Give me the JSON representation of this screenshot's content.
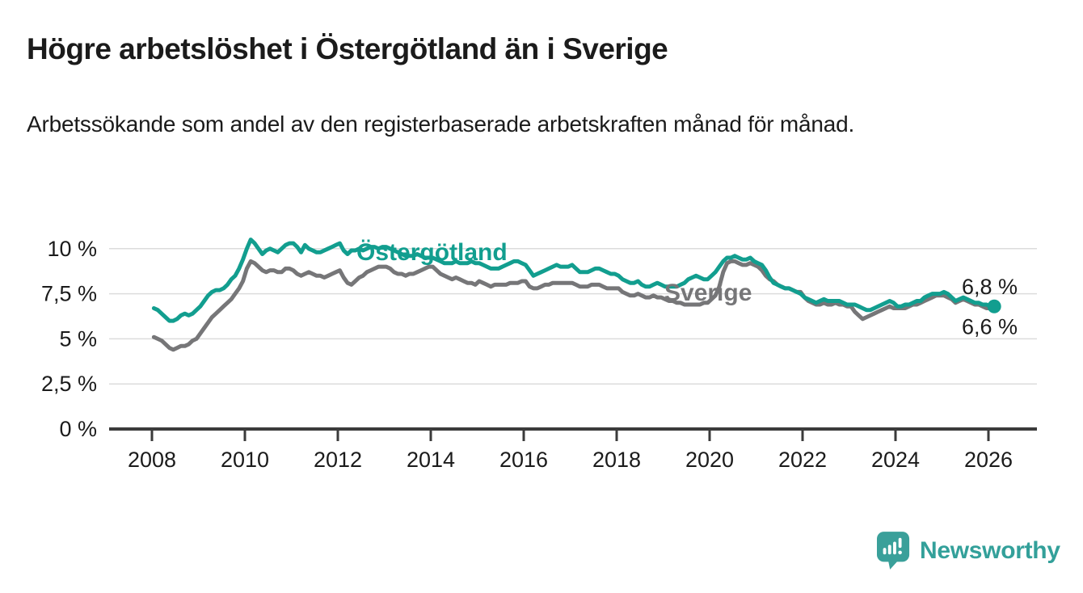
{
  "header": {
    "title": "Högre arbetslöshet i Östergötland än i Sverige",
    "subtitle": "Arbetssökande som andel av den registerbaserade arbetskraften månad för månad."
  },
  "footer": {
    "logo_text": "Newsworthy"
  },
  "colors": {
    "ostergotland": "#129e8f",
    "sverige": "#767678",
    "axis": "#3b3b3b",
    "gridline": "#dcdcdc",
    "text": "#1b1b1b",
    "logo": "#33a09a"
  },
  "chart_data": {
    "type": "line",
    "x_unit": "month",
    "x_start": "2008-01",
    "x_end": "2026-02",
    "x_ticks": [
      2008,
      2010,
      2012,
      2014,
      2016,
      2018,
      2020,
      2022,
      2024,
      2026
    ],
    "y_ticks": [
      {
        "value": 0,
        "label": "0 %"
      },
      {
        "value": 2.5,
        "label": "2,5 %"
      },
      {
        "value": 5,
        "label": "5 %"
      },
      {
        "value": 7.5,
        "label": "7,5 %"
      },
      {
        "value": 10,
        "label": "10 %"
      }
    ],
    "ylim": [
      0,
      11.2
    ],
    "grid": "horizontal",
    "legend_position": "inline-labels",
    "series": [
      {
        "name": "Östergötland",
        "color": "#129e8f",
        "end_label": "6,8 %",
        "latest_value": 6.8,
        "values": [
          6.7,
          6.6,
          6.4,
          6.2,
          6.0,
          6.0,
          6.1,
          6.3,
          6.4,
          6.3,
          6.4,
          6.6,
          6.8,
          7.1,
          7.4,
          7.6,
          7.7,
          7.7,
          7.8,
          8.0,
          8.3,
          8.5,
          8.9,
          9.4,
          10.0,
          10.5,
          10.3,
          10.0,
          9.7,
          9.9,
          10.0,
          9.9,
          9.8,
          10.0,
          10.2,
          10.3,
          10.3,
          10.1,
          9.8,
          10.2,
          10.0,
          9.9,
          9.8,
          9.8,
          9.9,
          10.0,
          10.1,
          10.2,
          10.3,
          9.9,
          9.7,
          9.9,
          9.9,
          10.0,
          9.9,
          10.0,
          10.1,
          10.1,
          10.0,
          10.1,
          10.1,
          10.0,
          9.9,
          9.8,
          9.7,
          9.6,
          9.6,
          9.6,
          9.7,
          9.6,
          9.5,
          9.5,
          9.5,
          9.4,
          9.3,
          9.2,
          9.2,
          9.2,
          9.3,
          9.2,
          9.2,
          9.2,
          9.3,
          9.2,
          9.2,
          9.1,
          9.0,
          8.9,
          8.9,
          8.9,
          9.0,
          9.1,
          9.2,
          9.3,
          9.3,
          9.2,
          9.1,
          8.8,
          8.5,
          8.6,
          8.7,
          8.8,
          8.9,
          9.0,
          9.1,
          9.0,
          9.0,
          9.0,
          9.1,
          8.9,
          8.7,
          8.7,
          8.7,
          8.8,
          8.9,
          8.9,
          8.8,
          8.7,
          8.6,
          8.6,
          8.5,
          8.3,
          8.2,
          8.1,
          8.1,
          8.2,
          8.0,
          7.9,
          7.9,
          8.0,
          8.1,
          8.0,
          7.9,
          7.9,
          7.9,
          7.9,
          8.0,
          8.1,
          8.3,
          8.4,
          8.5,
          8.4,
          8.3,
          8.3,
          8.5,
          8.7,
          9.0,
          9.3,
          9.5,
          9.5,
          9.6,
          9.5,
          9.4,
          9.4,
          9.5,
          9.3,
          9.2,
          9.1,
          8.8,
          8.4,
          8.1,
          8.0,
          7.9,
          7.8,
          7.8,
          7.7,
          7.6,
          7.5,
          7.3,
          7.2,
          7.1,
          7.0,
          7.1,
          7.2,
          7.1,
          7.1,
          7.1,
          7.1,
          7.0,
          6.9,
          6.9,
          6.9,
          6.8,
          6.7,
          6.6,
          6.6,
          6.7,
          6.8,
          6.9,
          7.0,
          7.1,
          7.0,
          6.8,
          6.8,
          6.9,
          6.9,
          7.0,
          7.1,
          7.1,
          7.3,
          7.4,
          7.5,
          7.5,
          7.5,
          7.6,
          7.5,
          7.3,
          7.1,
          7.2,
          7.3,
          7.2,
          7.1,
          7.0,
          7.0,
          6.9,
          6.9,
          6.8,
          6.8
        ]
      },
      {
        "name": "Sverige",
        "color": "#767678",
        "end_label": "6,6 %",
        "latest_value": 6.6,
        "values": [
          5.1,
          5.0,
          4.9,
          4.7,
          4.5,
          4.4,
          4.5,
          4.6,
          4.6,
          4.7,
          4.9,
          5.0,
          5.3,
          5.6,
          5.9,
          6.2,
          6.4,
          6.6,
          6.8,
          7.0,
          7.2,
          7.5,
          7.8,
          8.2,
          8.9,
          9.3,
          9.2,
          9.0,
          8.8,
          8.7,
          8.8,
          8.8,
          8.7,
          8.7,
          8.9,
          8.9,
          8.8,
          8.6,
          8.5,
          8.6,
          8.7,
          8.6,
          8.5,
          8.5,
          8.4,
          8.5,
          8.6,
          8.7,
          8.8,
          8.4,
          8.1,
          8.0,
          8.2,
          8.4,
          8.5,
          8.7,
          8.8,
          8.9,
          9.0,
          9.0,
          9.0,
          8.9,
          8.7,
          8.6,
          8.6,
          8.5,
          8.6,
          8.6,
          8.7,
          8.8,
          8.9,
          9.0,
          9.0,
          8.8,
          8.6,
          8.5,
          8.4,
          8.3,
          8.4,
          8.3,
          8.2,
          8.1,
          8.1,
          8.0,
          8.2,
          8.1,
          8.0,
          7.9,
          8.0,
          8.0,
          8.0,
          8.0,
          8.1,
          8.1,
          8.1,
          8.2,
          8.2,
          7.9,
          7.8,
          7.8,
          7.9,
          8.0,
          8.0,
          8.1,
          8.1,
          8.1,
          8.1,
          8.1,
          8.1,
          8.0,
          7.9,
          7.9,
          7.9,
          8.0,
          8.0,
          8.0,
          7.9,
          7.8,
          7.8,
          7.8,
          7.8,
          7.6,
          7.5,
          7.4,
          7.4,
          7.5,
          7.4,
          7.3,
          7.3,
          7.4,
          7.3,
          7.3,
          7.2,
          7.1,
          7.1,
          7.0,
          7.0,
          6.9,
          6.9,
          6.9,
          6.9,
          6.9,
          7.0,
          7.0,
          7.2,
          7.4,
          7.9,
          8.7,
          9.2,
          9.3,
          9.3,
          9.2,
          9.1,
          9.1,
          9.2,
          9.1,
          9.0,
          8.8,
          8.5,
          8.3,
          8.2,
          8.0,
          7.9,
          7.8,
          7.8,
          7.7,
          7.6,
          7.6,
          7.3,
          7.1,
          7.0,
          6.9,
          6.9,
          7.0,
          6.9,
          6.9,
          7.0,
          6.9,
          6.9,
          6.8,
          6.8,
          6.5,
          6.3,
          6.1,
          6.2,
          6.3,
          6.4,
          6.5,
          6.6,
          6.7,
          6.8,
          6.7,
          6.7,
          6.7,
          6.7,
          6.8,
          6.9,
          6.9,
          7.0,
          7.1,
          7.2,
          7.3,
          7.4,
          7.4,
          7.4,
          7.3,
          7.2,
          7.0,
          7.1,
          7.2,
          7.1,
          7.0,
          6.9,
          6.9,
          6.8,
          6.7,
          6.7,
          6.6
        ]
      }
    ]
  }
}
